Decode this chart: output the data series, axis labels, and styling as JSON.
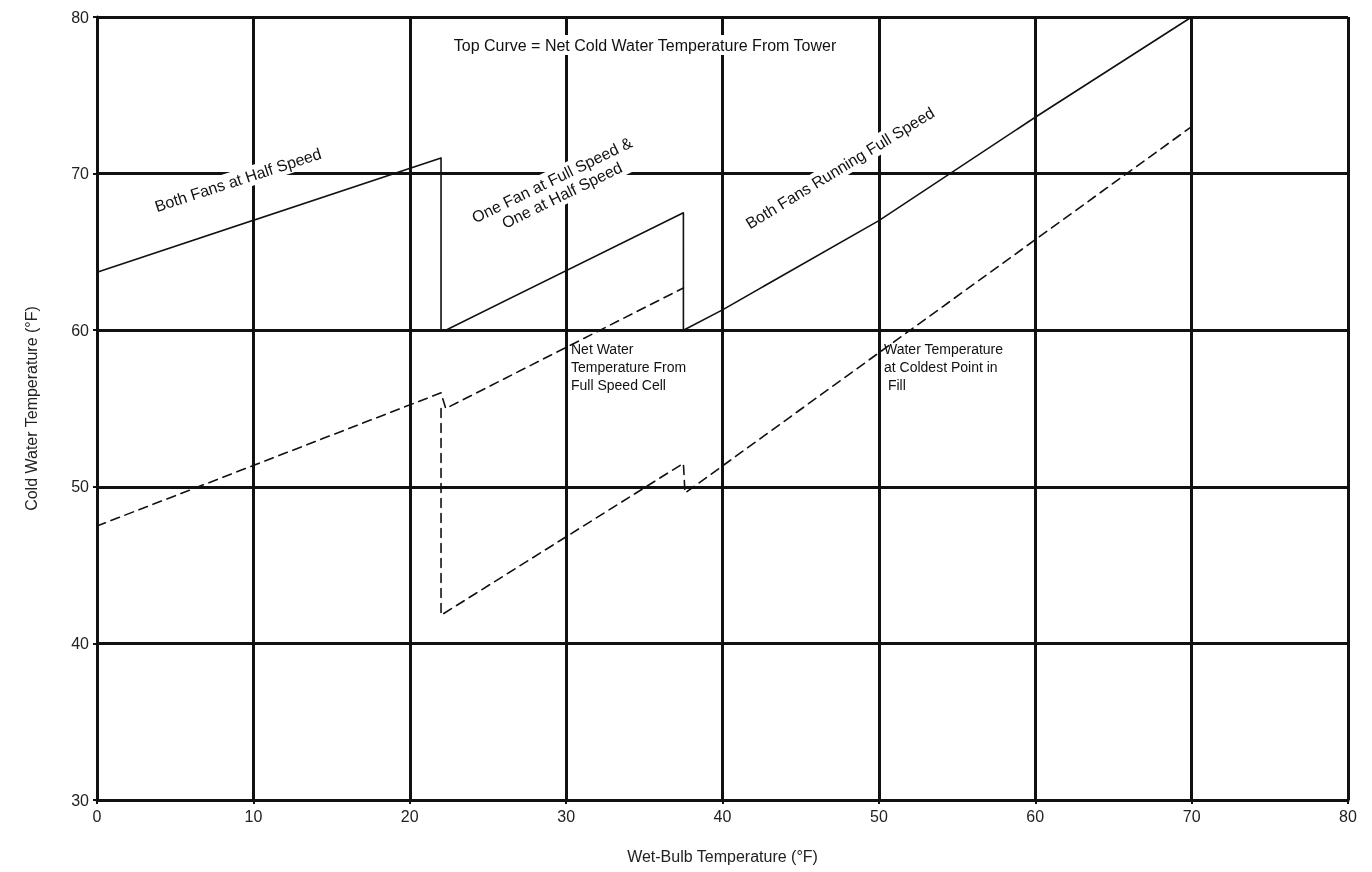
{
  "chart_data": {
    "type": "line",
    "xlabel": "Wet-Bulb Temperature (°F)",
    "ylabel": "Cold Water Temperature (°F)",
    "xlim": [
      0,
      80
    ],
    "xticks": [
      0,
      10,
      20,
      30,
      40,
      50,
      60,
      70,
      80
    ],
    "ylim": [
      30,
      80
    ],
    "yticks": [
      30,
      40,
      50,
      60,
      70,
      80
    ],
    "grid": true,
    "marker": "none",
    "series": [
      {
        "color": "#111111",
        "line_style": "solid",
        "x": [
          0,
          22,
          22,
          22.3,
          37.5,
          37.5,
          40,
          50,
          60,
          70
        ],
        "values": [
          63.7,
          71,
          60,
          60,
          67.5,
          60,
          61.3,
          67,
          73.6,
          80
        ]
      },
      {
        "color": "#111111",
        "line_style": "dashed",
        "x": [
          0,
          22,
          22.3,
          37.5
        ],
        "values": [
          47.5,
          56,
          55,
          62.7
        ]
      },
      {
        "color": "#111111",
        "line_style": "dashed",
        "x": [
          22,
          22,
          37.5,
          37.6,
          70
        ],
        "values": [
          55,
          41.8,
          51.5,
          49.6,
          73
        ]
      }
    ],
    "annotations": [
      "Top Curve = Net Cold Water Temperature From Tower",
      "Both Fans at Half Speed",
      "One Fan at Full Speed & One at Half Speed",
      "Both Fans Running Full Speed",
      "Net Water Temperature From Full Speed Cell",
      "Water Temperature at Coldest Point in Fill"
    ]
  }
}
